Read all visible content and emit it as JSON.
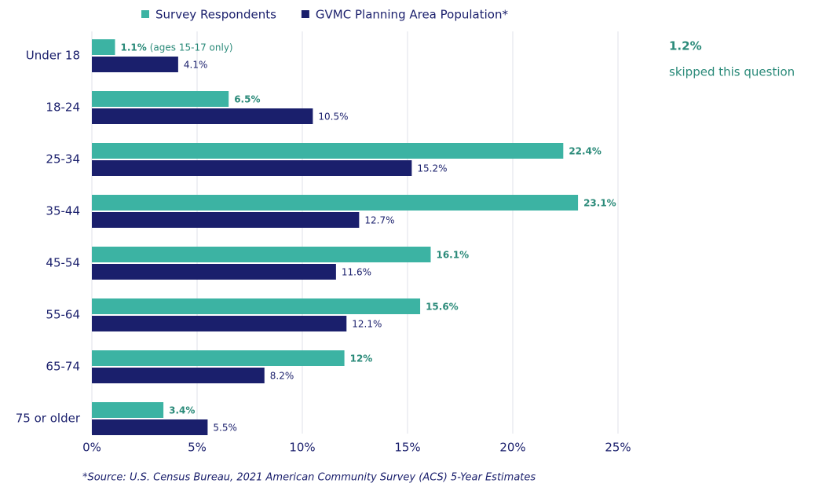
{
  "chart_data": {
    "type": "hbar",
    "categories": [
      "Under 18",
      "18-24",
      "25-34",
      "35-44",
      "45-54",
      "55-64",
      "65-74",
      "75 or older"
    ],
    "series": [
      {
        "name": "Survey Respondents",
        "color": "#3cb3a3",
        "label_color": "#2a8a79",
        "values": [
          1.1,
          6.5,
          22.4,
          23.1,
          16.1,
          15.6,
          12,
          3.4
        ],
        "value_labels": [
          "1.1%",
          "6.5%",
          "22.4%",
          "23.1%",
          "16.1%",
          "15.6%",
          "12%",
          "3.4%"
        ]
      },
      {
        "name": "GVMC Planning Area Population*",
        "color": "#1a1f6c",
        "label_color": "#1a1f6c",
        "values": [
          4.1,
          10.5,
          15.2,
          12.7,
          11.6,
          12.1,
          8.2,
          5.5
        ],
        "value_labels": [
          "4.1%",
          "10.5%",
          "15.2%",
          "12.7%",
          "11.6%",
          "12.1%",
          "8.2%",
          "5.5%"
        ]
      }
    ],
    "xlim": [
      0,
      25
    ],
    "xticks": [
      {
        "value": 0,
        "label": "0%"
      },
      {
        "value": 5,
        "label": "5%"
      },
      {
        "value": 10,
        "label": "10%"
      },
      {
        "value": 15,
        "label": "15%"
      },
      {
        "value": 20,
        "label": "20%"
      },
      {
        "value": 25,
        "label": "25%"
      }
    ],
    "grid": true,
    "annotations": {
      "first_bar_note": "(ages 15-17 only)",
      "skipped_value": "1.2%",
      "skipped_text": "skipped this question",
      "source": "*Source: U.S. Census Bureau, 2021 American Community Survey (ACS) 5-Year Estimates"
    }
  }
}
